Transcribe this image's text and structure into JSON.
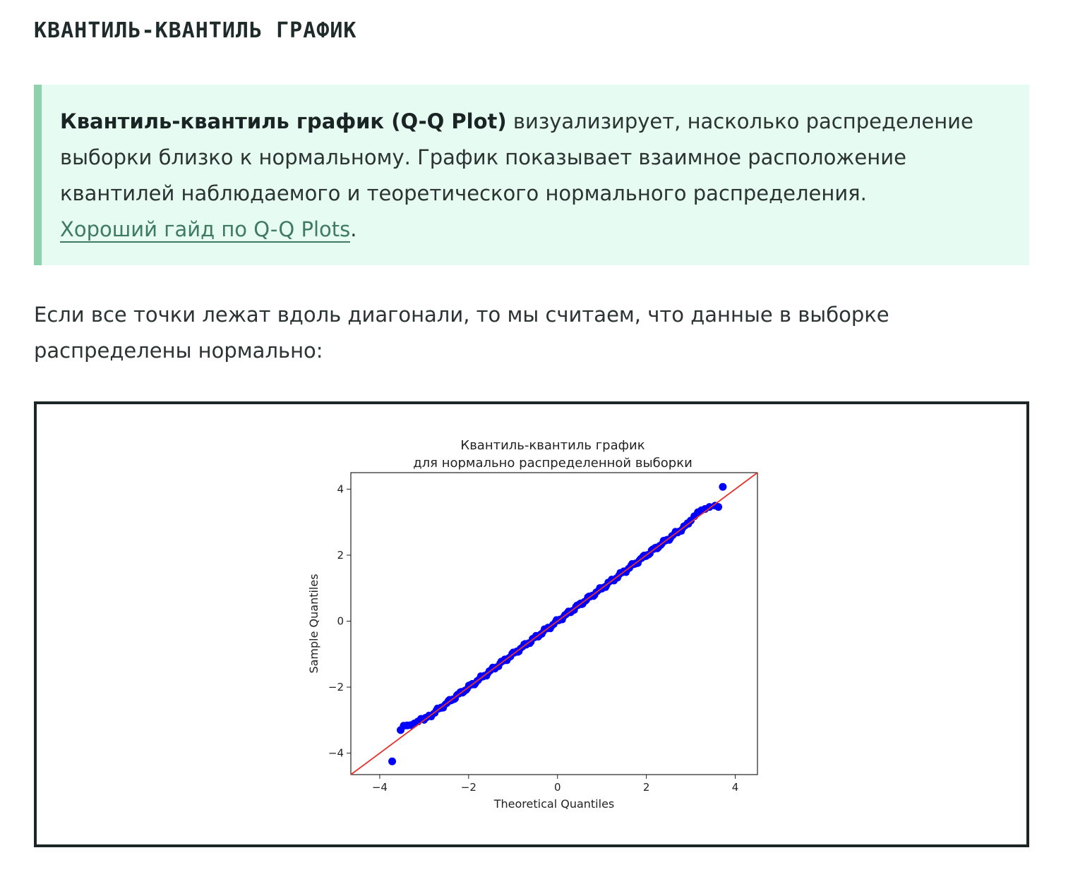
{
  "heading": "КВАНТИЛЬ-КВАНТИЛЬ ГРАФИК",
  "callout": {
    "term": "Квантиль-квантиль график (Q-Q Plot)",
    "text": " визуализирует, насколько распределение выборки близко к нормальному. График показывает взаимное расположение квантилей наблюдаемого и теоретического нормального распределения.",
    "link_text": "Хороший гайд по Q-Q Plots",
    "after_link": "."
  },
  "paragraph": "Если все точки лежат вдоль диагонали, то мы считаем, что данные в выборке распределены нормально:",
  "colors": {
    "accent_bar": "#8fd0ad",
    "callout_bg": "#e6fbf1",
    "link": "#3f7a62",
    "points": "#0000ff",
    "reference_line": "#e8312b"
  },
  "chart_data": {
    "type": "scatter",
    "title": "Квантиль-квантиль график\nдля нормально распределенной выборки",
    "xlabel": "Theoretical Quantiles",
    "ylabel": "Sample Quantiles",
    "xlim": [
      -4.65,
      4.5
    ],
    "ylim": [
      -4.65,
      4.5
    ],
    "xticks": [
      -4,
      -2,
      0,
      2,
      4
    ],
    "yticks": [
      -4,
      -2,
      0,
      2,
      4
    ],
    "tick_labels": [
      "−4",
      "−2",
      "0",
      "2",
      "4"
    ],
    "grid": false,
    "legend": "none",
    "reference_line": {
      "from": [
        -4.65,
        -4.65
      ],
      "to": [
        4.5,
        4.5
      ]
    },
    "series": [
      {
        "points_outlier": [
          [
            -3.72,
            -4.25
          ],
          [
            -3.53,
            -3.3
          ],
          [
            -3.46,
            -3.17
          ],
          [
            -3.38,
            -3.16
          ],
          [
            -3.3,
            -3.15
          ],
          [
            -3.22,
            -3.1
          ],
          [
            -3.14,
            -3.04
          ],
          [
            -3.07,
            -2.96
          ]
        ],
        "points_upper": [
          [
            3.0,
            3.05
          ],
          [
            3.08,
            3.18
          ],
          [
            3.16,
            3.3
          ],
          [
            3.24,
            3.36
          ],
          [
            3.32,
            3.4
          ],
          [
            3.42,
            3.46
          ],
          [
            3.55,
            3.5
          ],
          [
            3.62,
            3.46
          ],
          [
            3.72,
            4.07
          ]
        ],
        "body_range": [
          -3.0,
          2.95
        ]
      }
    ]
  }
}
